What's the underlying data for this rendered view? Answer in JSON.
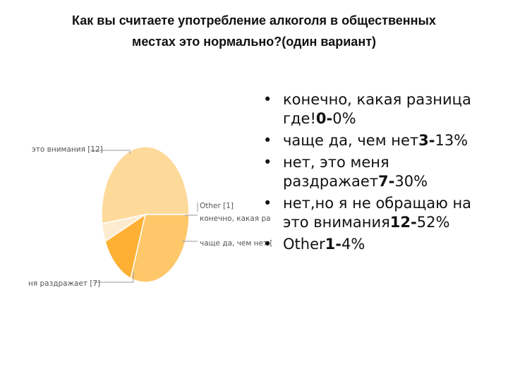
{
  "title_line1": "Как вы считаете употребление алкоголя в общественных",
  "title_line2": "местах это нормально?(один вариант)",
  "chart_data": {
    "type": "pie",
    "slices": [
      {
        "label": "это внимания [12]",
        "value": 12,
        "color": "#FDD99A"
      },
      {
        "label": "Other [1]",
        "value": 1,
        "color": "#FDEBCF"
      },
      {
        "label": "конечно, какая ра",
        "value": 0,
        "color": "#FDE2B4"
      },
      {
        "label": "чаще да, чем нет [",
        "value": 3,
        "color": "#FDB033"
      },
      {
        "label": "ня раздражает [7]",
        "value": 7,
        "color": "#FDC76A"
      }
    ]
  },
  "bullets": [
    {
      "text": "конечно, какая разница где!",
      "num": "0-",
      "pct": "0%"
    },
    {
      "text": "чаще да, чем нет",
      "num": "3-",
      "pct": "13%"
    },
    {
      "text": "нет, это меня раздражает",
      "num": "7-",
      "pct": "30%"
    },
    {
      "text": "нет,но я не обращаю на это внимания",
      "num": "12-",
      "pct": "52%"
    },
    {
      "text": "Other",
      "num": "1-",
      "pct": "4%"
    }
  ],
  "bullet_char": "•"
}
